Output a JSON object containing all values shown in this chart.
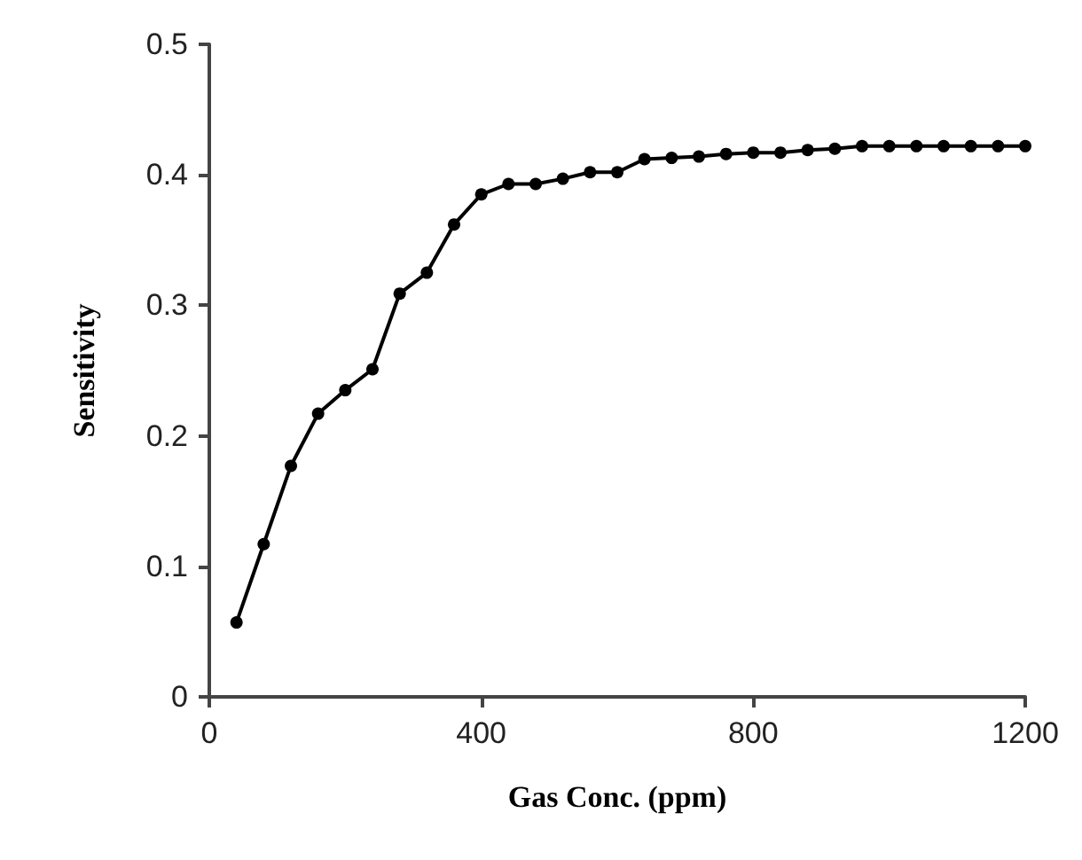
{
  "chart_data": {
    "type": "line",
    "xlabel": "Gas Conc. (ppm)",
    "ylabel": "Sensitivity",
    "x": [
      40,
      80,
      120,
      160,
      200,
      240,
      280,
      320,
      360,
      400,
      440,
      480,
      520,
      560,
      600,
      640,
      680,
      720,
      760,
      800,
      840,
      880,
      920,
      960,
      1000,
      1040,
      1080,
      1120,
      1160,
      1200
    ],
    "series": [
      {
        "color": "#000000",
        "values": [
          0.057,
          0.117,
          0.177,
          0.217,
          0.235,
          0.251,
          0.309,
          0.325,
          0.362,
          0.385,
          0.393,
          0.393,
          0.397,
          0.402,
          0.402,
          0.412,
          0.413,
          0.414,
          0.416,
          0.417,
          0.417,
          0.419,
          0.42,
          0.422,
          0.422,
          0.422,
          0.422,
          0.422,
          0.422,
          0.422
        ]
      }
    ],
    "xlim": [
      0,
      1200
    ],
    "xticks": [
      0,
      400,
      800,
      1200
    ],
    "ylim": [
      0,
      0.5
    ],
    "yticks": [
      0,
      0.1,
      0.2,
      0.3,
      0.4,
      0.5
    ],
    "grid": false,
    "marker": "circle",
    "line_style": "solid"
  }
}
